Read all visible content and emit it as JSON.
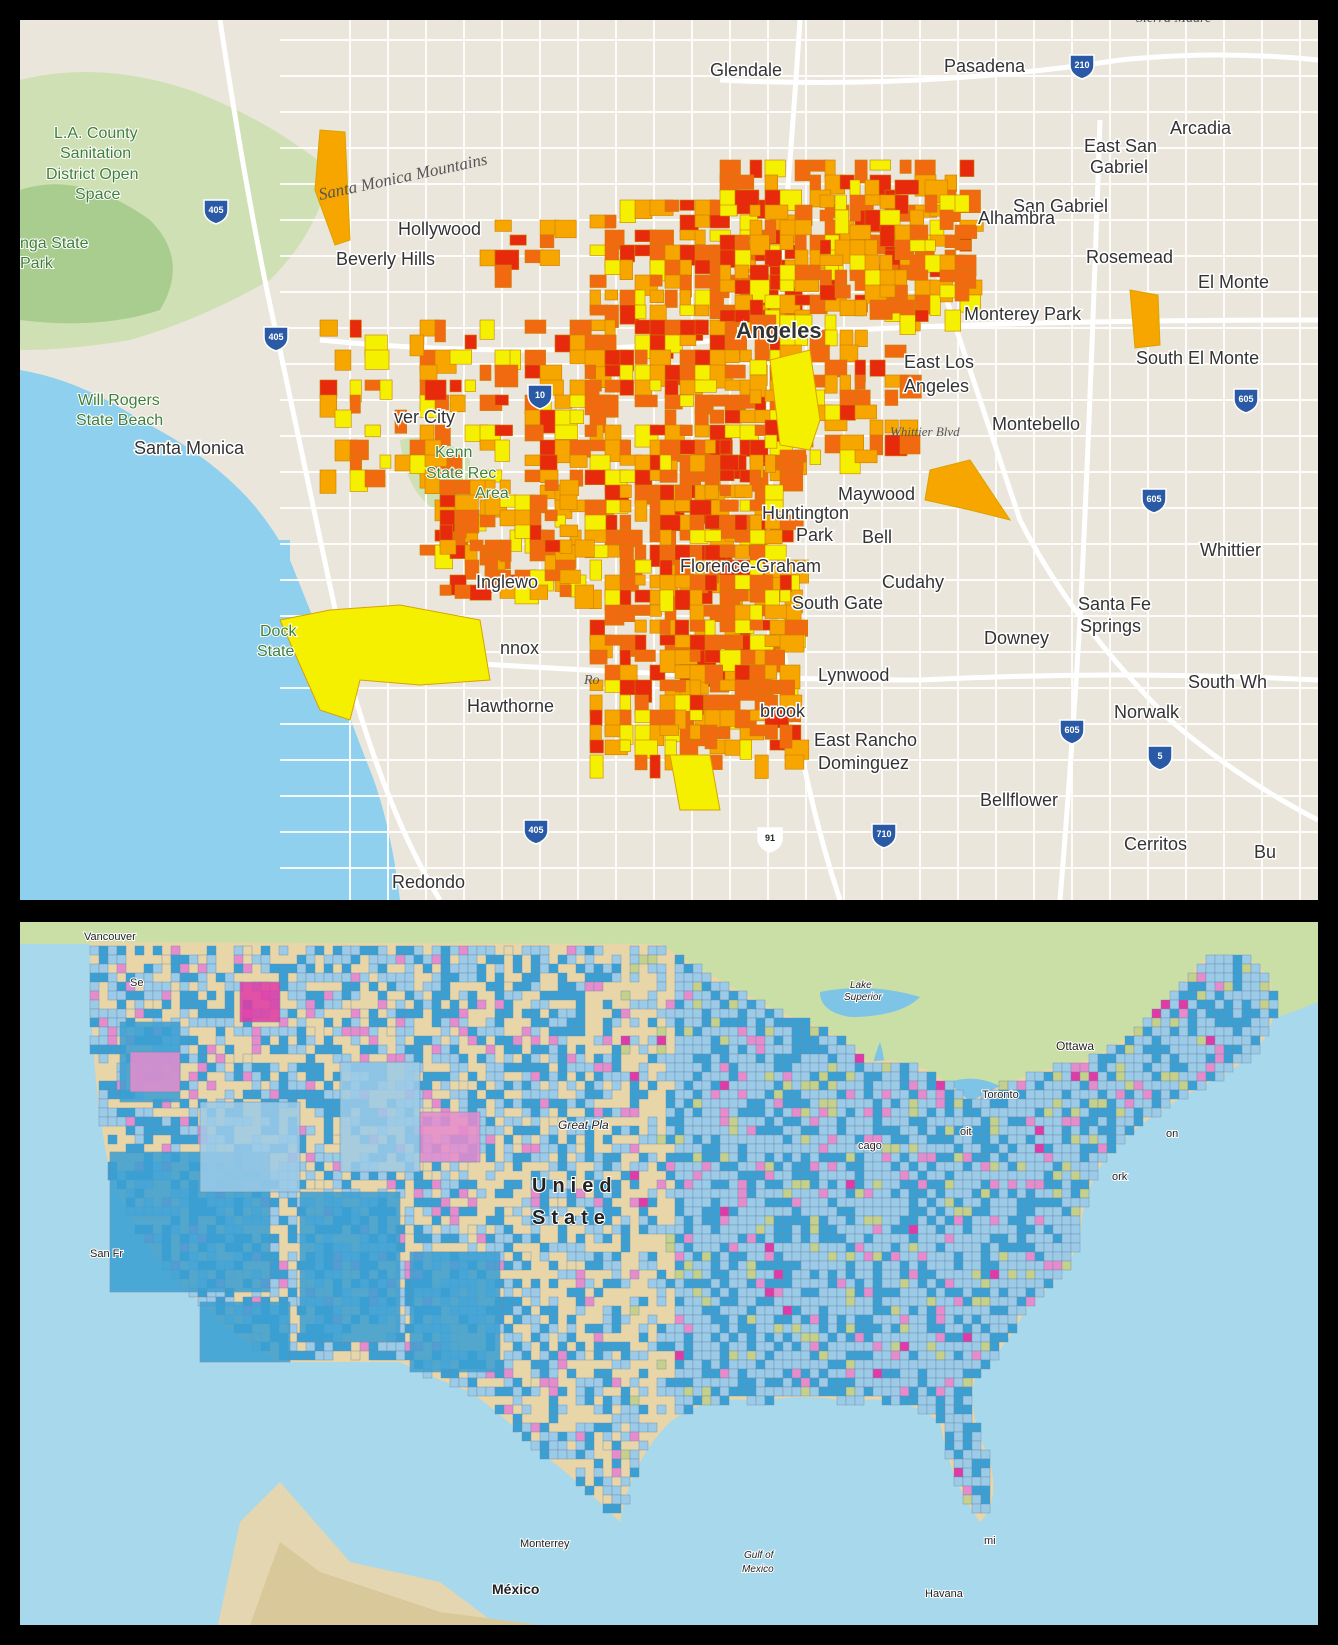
{
  "la_map": {
    "city_labels": [
      {
        "id": "glendale",
        "text": "Glendale"
      },
      {
        "id": "pasadena",
        "text": "Pasadena"
      },
      {
        "id": "arcadia",
        "text": "Arcadia"
      },
      {
        "id": "east-san",
        "text": "East San"
      },
      {
        "id": "gabriel",
        "text": "Gabriel"
      },
      {
        "id": "san-gabriel",
        "text": "San Gabriel"
      },
      {
        "id": "alhambra",
        "text": "Alhambra"
      },
      {
        "id": "rosemead",
        "text": "Rosemead"
      },
      {
        "id": "el-monte",
        "text": "El Monte"
      },
      {
        "id": "monterey-park",
        "text": "Monterey Park"
      },
      {
        "id": "south-el-monte",
        "text": "South El Monte"
      },
      {
        "id": "angeles",
        "text": "Angeles"
      },
      {
        "id": "east-los",
        "text": "East Los"
      },
      {
        "id": "angeles-2",
        "text": "Angeles"
      },
      {
        "id": "montebello",
        "text": "Montebello"
      },
      {
        "id": "hollywood",
        "text": "Hollywood"
      },
      {
        "id": "beverly-hills",
        "text": "Beverly Hills"
      },
      {
        "id": "santa-monica",
        "text": "Santa Monica"
      },
      {
        "id": "culver-city",
        "text": "ver City"
      },
      {
        "id": "maywood",
        "text": "Maywood"
      },
      {
        "id": "huntington",
        "text": "Huntington"
      },
      {
        "id": "park",
        "text": "Park"
      },
      {
        "id": "bell",
        "text": "Bell"
      },
      {
        "id": "cudahy",
        "text": "Cudahy"
      },
      {
        "id": "florence-graham",
        "text": "Florence-Graham"
      },
      {
        "id": "south-gate",
        "text": "South Gate"
      },
      {
        "id": "inglewood",
        "text": "Inglewo"
      },
      {
        "id": "lennox",
        "text": "nnox"
      },
      {
        "id": "hawthorne",
        "text": "Hawthorne"
      },
      {
        "id": "lynwood",
        "text": "Lynwood"
      },
      {
        "id": "willowbrook",
        "text": "brook"
      },
      {
        "id": "east-rancho",
        "text": "East Rancho"
      },
      {
        "id": "dominguez",
        "text": "Dominguez"
      },
      {
        "id": "downey",
        "text": "Downey"
      },
      {
        "id": "santa-fe",
        "text": "Santa Fe"
      },
      {
        "id": "springs",
        "text": "Springs"
      },
      {
        "id": "whittier",
        "text": "Whittier"
      },
      {
        "id": "south-wh",
        "text": "South Wh"
      },
      {
        "id": "norwalk",
        "text": "Norwalk"
      },
      {
        "id": "bellflower",
        "text": "Bellflower"
      },
      {
        "id": "cerritos",
        "text": "Cerritos"
      },
      {
        "id": "redondo",
        "text": "Redondo"
      },
      {
        "id": "bu",
        "text": "Bu"
      }
    ],
    "park_labels": [
      {
        "id": "la-county-1",
        "text": "L.A. County"
      },
      {
        "id": "la-county-2",
        "text": "Sanitation"
      },
      {
        "id": "la-county-3",
        "text": "District Open"
      },
      {
        "id": "la-county-4",
        "text": "Space"
      },
      {
        "id": "topanga-1",
        "text": "nga State"
      },
      {
        "id": "topanga-2",
        "text": "Park"
      },
      {
        "id": "will-rogers-1",
        "text": "Will Rogers"
      },
      {
        "id": "will-rogers-2",
        "text": "State Beach"
      },
      {
        "id": "kenneth-1",
        "text": "Kenn"
      },
      {
        "id": "kenneth-2",
        "text": "State Rec"
      },
      {
        "id": "kenneth-3",
        "text": "Area"
      },
      {
        "id": "dockweiler-1",
        "text": "Dock"
      },
      {
        "id": "dockweiler-2",
        "text": "State"
      }
    ],
    "feature_labels": [
      {
        "id": "santa-monica-mtns",
        "text": "Santa Monica Mountains"
      },
      {
        "id": "whittier-blvd",
        "text": "Whittier Blvd"
      },
      {
        "id": "rosecrans",
        "text": "Ro"
      },
      {
        "id": "sierra-madre",
        "text": "Sierra Madre"
      }
    ],
    "highway_shields": [
      "210",
      "405",
      "405",
      "605",
      "605",
      "605",
      "5",
      "405",
      "710",
      "91",
      "10"
    ],
    "colors": {
      "yellow": "#f5ef00",
      "orange": "#f7a600",
      "orange_red": "#f26a10",
      "red": "#e82a0c",
      "water": "#8fd0ef"
    }
  },
  "us_map": {
    "labels": [
      {
        "id": "vancouver",
        "text": "Vancouver"
      },
      {
        "id": "seattle",
        "text": "Se"
      },
      {
        "id": "ottawa",
        "text": "Ottawa"
      },
      {
        "id": "toronto",
        "text": "Toronto"
      },
      {
        "id": "chicago",
        "text": "cago"
      },
      {
        "id": "detroit",
        "text": "oit"
      },
      {
        "id": "boston",
        "text": "on"
      },
      {
        "id": "new-york",
        "text": "ork"
      },
      {
        "id": "san-francisco",
        "text": "San Fr"
      },
      {
        "id": "monterrey",
        "text": "Monterrey"
      },
      {
        "id": "mexico",
        "text": "México"
      },
      {
        "id": "havana",
        "text": "Havana"
      },
      {
        "id": "miami",
        "text": "mi"
      },
      {
        "id": "united",
        "text": "Unied"
      },
      {
        "id": "states",
        "text": "State"
      },
      {
        "id": "great-plains",
        "text": "Great Pla"
      },
      {
        "id": "lake-superior-1",
        "text": "Lake"
      },
      {
        "id": "lake-superior-2",
        "text": "Superior"
      },
      {
        "id": "gulf-1",
        "text": "Gulf of"
      },
      {
        "id": "gulf-2",
        "text": "Mexico"
      }
    ],
    "colors": {
      "blue": "#3aa0d4",
      "light_blue": "#9ccbe8",
      "pink": "#e68ccd",
      "magenta": "#e03aa6",
      "olive": "#c5d08a",
      "tan": "#e8d5a8"
    }
  }
}
